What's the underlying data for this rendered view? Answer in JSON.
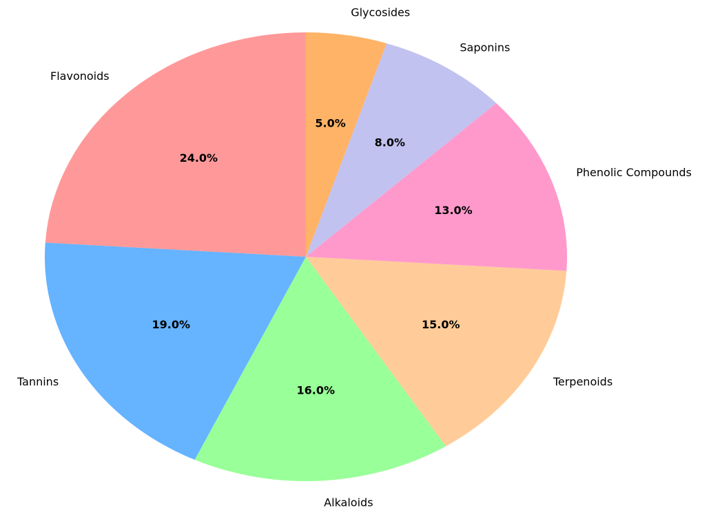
{
  "chart_data": {
    "type": "pie",
    "categories": [
      "Flavonoids",
      "Tannins",
      "Alkaloids",
      "Terpenoids",
      "Phenolic Compounds",
      "Saponins",
      "Glycosides"
    ],
    "values": [
      24,
      19,
      16,
      15,
      13,
      8,
      5
    ],
    "value_labels": [
      "24.0%",
      "19.0%",
      "16.0%",
      "15.0%",
      "13.0%",
      "8.0%",
      "5.0%"
    ],
    "colors": [
      "#ff9999",
      "#66b3ff",
      "#99ff99",
      "#ffcc99",
      "#ff99cc",
      "#c2c2f0",
      "#ffb366"
    ]
  }
}
